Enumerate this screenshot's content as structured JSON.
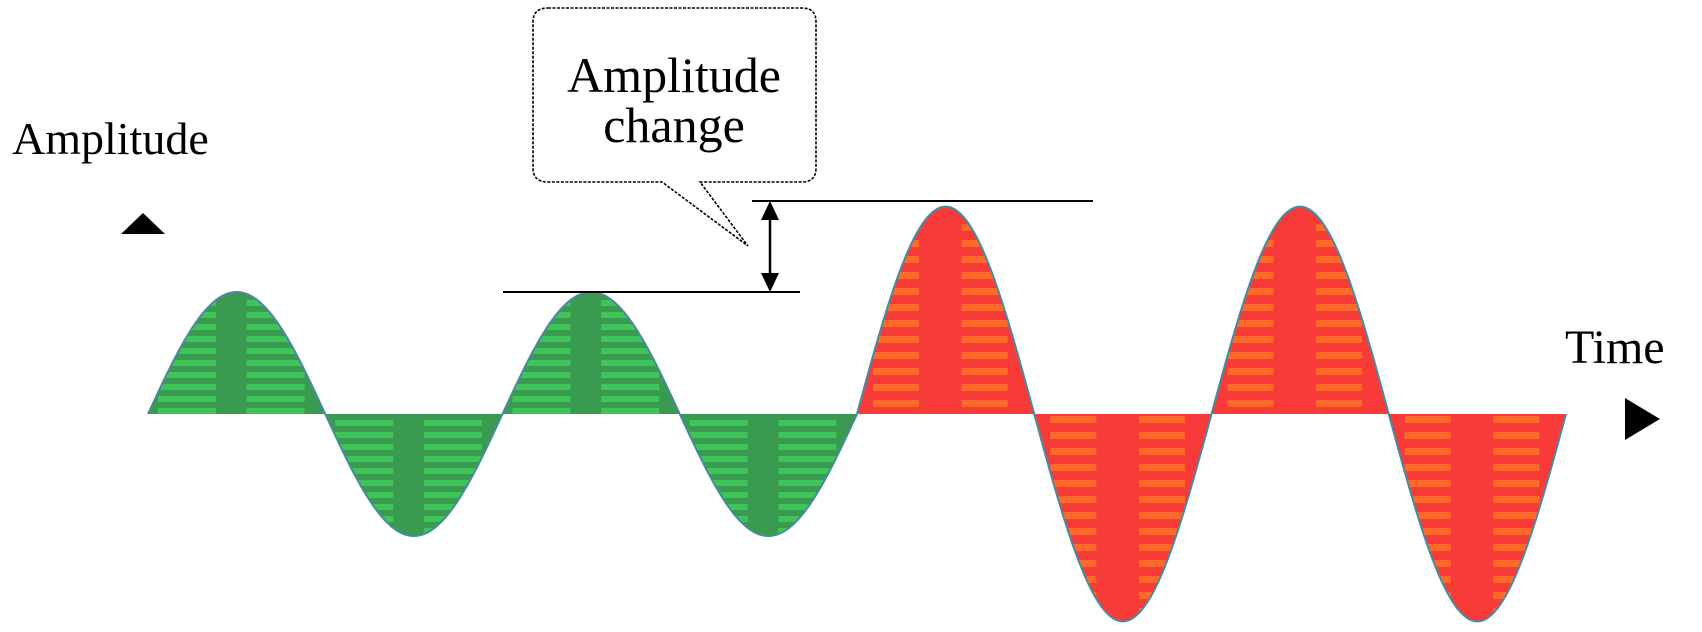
{
  "labels": {
    "y_axis": "Amplitude",
    "x_axis": "Time",
    "callout_line1": "Amplitude",
    "callout_line2": "change"
  },
  "colors": {
    "small_wave_fill": "#3a9a50",
    "small_wave_stripe": "#3fc45a",
    "large_wave_fill": "#f83a38",
    "large_wave_stripe": "#ff6a2c",
    "outline": "#4a8aa0",
    "ink": "#000000"
  },
  "icons": {
    "y_axis_arrow": "up-triangle-icon",
    "x_axis_arrow": "right-triangle-icon",
    "measure_arrow": "double-headed-arrow-icon"
  },
  "wave": {
    "cycles_small": 2,
    "cycles_large": 2,
    "amplitude_ratio": 1.7
  }
}
